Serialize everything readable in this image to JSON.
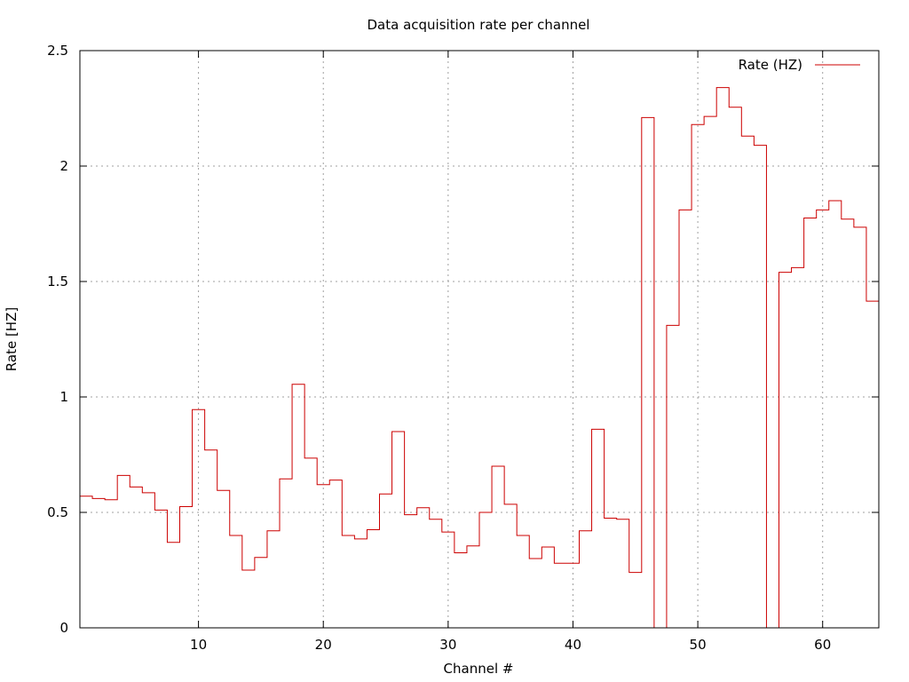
{
  "chart_data": {
    "type": "line",
    "title": "Data acquisition rate per channel",
    "xlabel": "Channel #",
    "ylabel": "Rate [HZ]",
    "xlim": [
      0.5,
      64.5
    ],
    "ylim": [
      0,
      2.5
    ],
    "xticks": [
      10,
      20,
      30,
      40,
      50,
      60
    ],
    "yticks": [
      0,
      0.5,
      1,
      1.5,
      2,
      2.5
    ],
    "ytick_labels": [
      "0",
      "0.5",
      "1",
      "1.5",
      "2",
      "2.5"
    ],
    "grid": true,
    "legend_position": "top-right",
    "style": "steps",
    "series": [
      {
        "name": "Rate (HZ)",
        "color": "#cc0000",
        "x": [
          1,
          2,
          3,
          4,
          5,
          6,
          7,
          8,
          9,
          10,
          11,
          12,
          13,
          14,
          15,
          16,
          17,
          18,
          19,
          20,
          21,
          22,
          23,
          24,
          25,
          26,
          27,
          28,
          29,
          30,
          31,
          32,
          33,
          34,
          35,
          36,
          37,
          38,
          39,
          40,
          41,
          42,
          43,
          44,
          45,
          46,
          47,
          48,
          49,
          50,
          51,
          52,
          53,
          54,
          55,
          56,
          57,
          58,
          59,
          60,
          61,
          62,
          63,
          64
        ],
        "y": [
          0.57,
          0.56,
          0.555,
          0.66,
          0.61,
          0.585,
          0.51,
          0.37,
          0.525,
          0.945,
          0.77,
          0.595,
          0.4,
          0.25,
          0.305,
          0.42,
          0.645,
          1.055,
          0.735,
          0.62,
          0.64,
          0.4,
          0.385,
          0.425,
          0.58,
          0.85,
          0.49,
          0.52,
          0.47,
          0.415,
          0.325,
          0.355,
          0.5,
          0.7,
          0.535,
          0.4,
          0.3,
          0.35,
          0.28,
          0.28,
          0.42,
          0.86,
          0.475,
          0.47,
          0.24,
          2.21,
          0,
          1.31,
          1.81,
          2.18,
          2.215,
          2.34,
          2.255,
          2.13,
          2.09,
          0,
          1.54,
          1.56,
          1.775,
          1.81,
          1.85,
          1.77,
          1.735,
          1.415
        ]
      }
    ]
  }
}
